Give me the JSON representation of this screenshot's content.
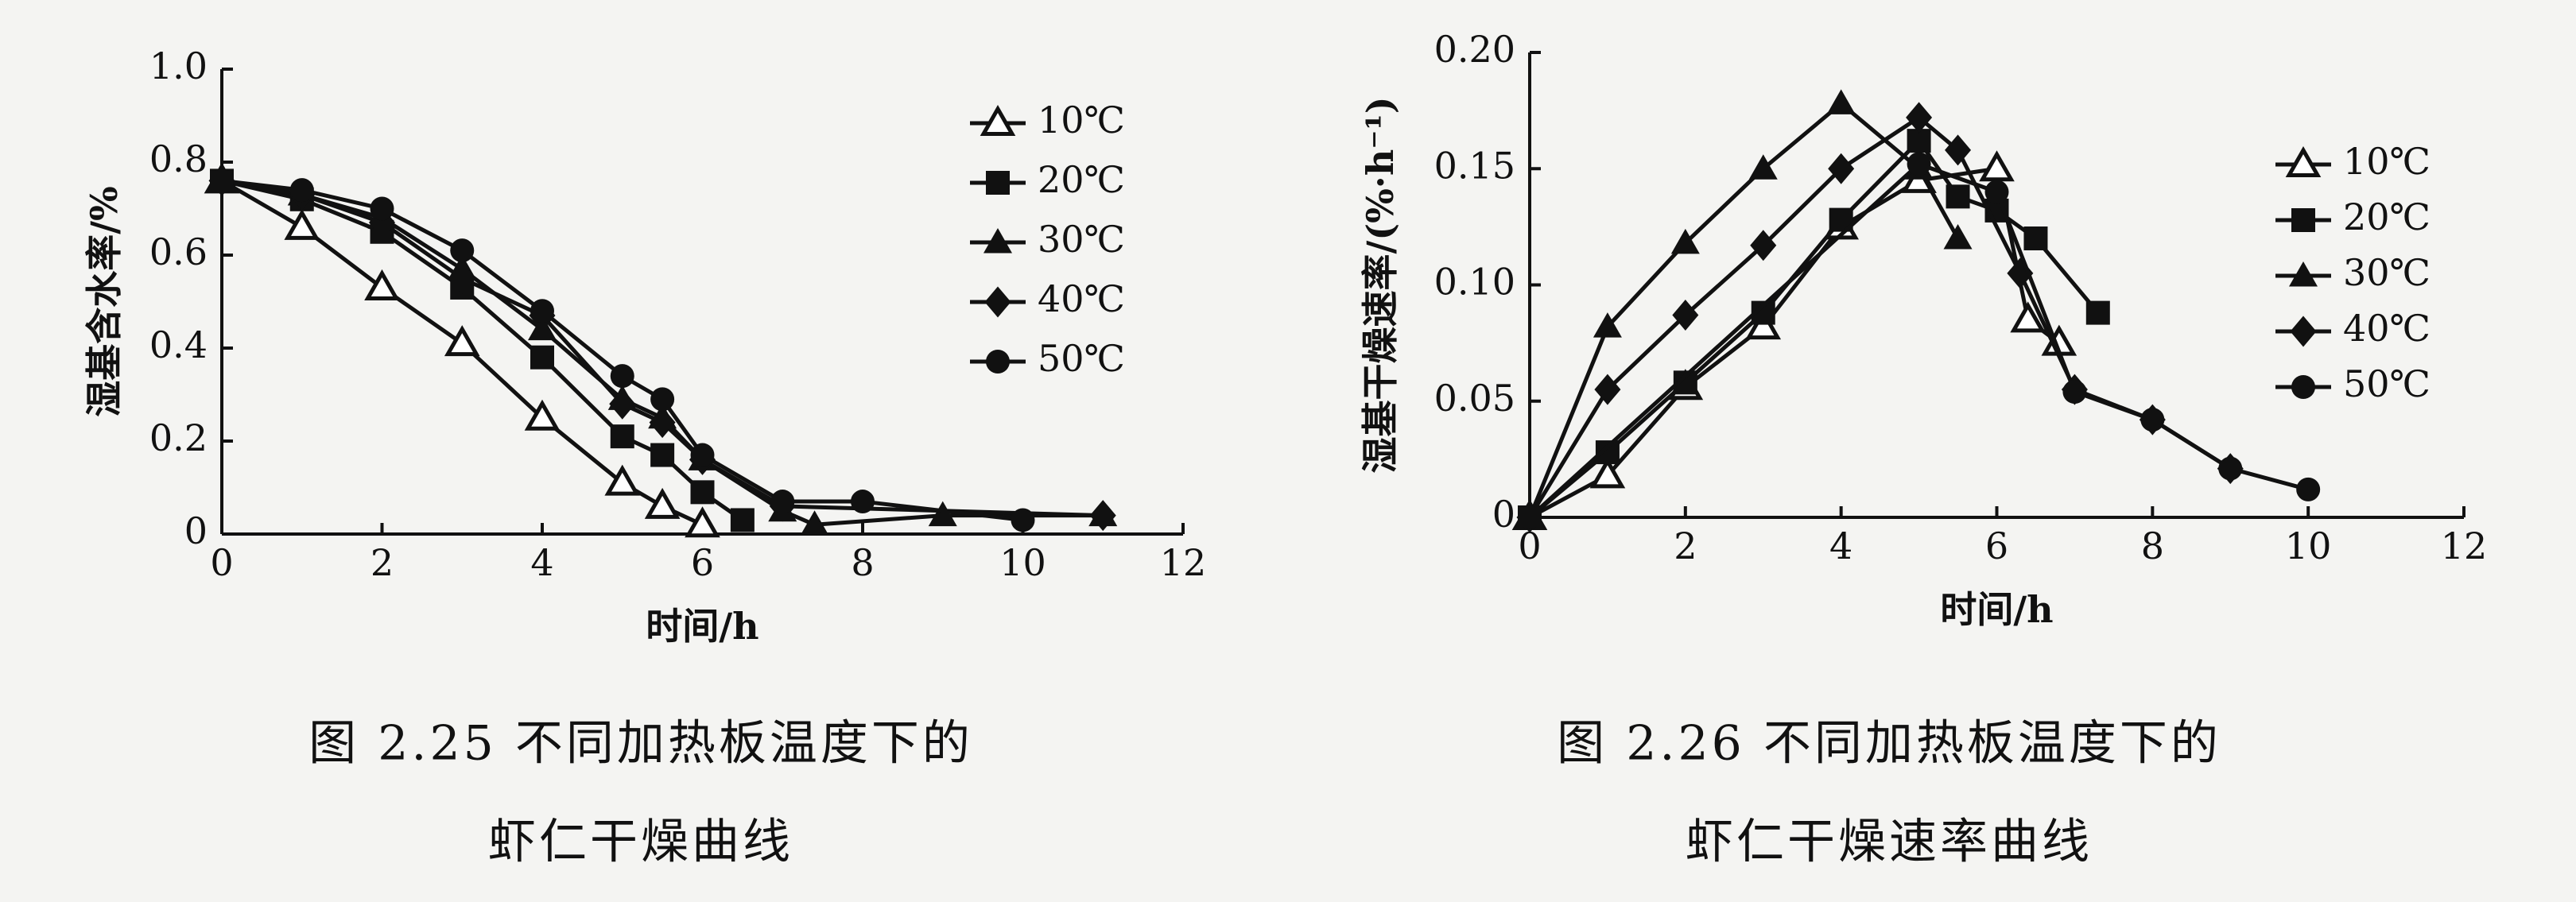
{
  "chart_data": [
    {
      "type": "line",
      "xlabel": "时间/h",
      "ylabel": "湿基含水率/%",
      "caption": [
        "图 2.25  不同加热板温度下的",
        "虾仁干燥曲线"
      ],
      "xlim": [
        0,
        12
      ],
      "xticks": [
        0,
        2,
        4,
        6,
        8,
        10,
        12
      ],
      "ylim": [
        0,
        1
      ],
      "yticks": [
        0,
        0.2,
        0.4,
        0.6,
        0.8,
        {
          "value": 1,
          "label": "1.0"
        }
      ],
      "series": [
        {
          "name": "10℃",
          "color": "#111",
          "marker": "open-triangle",
          "x": [
            0,
            1,
            2,
            3,
            4,
            5,
            5.5,
            6
          ],
          "values": [
            0.76,
            0.66,
            0.53,
            0.41,
            0.25,
            0.11,
            0.06,
            0.02
          ]
        },
        {
          "name": "20℃",
          "color": "#111",
          "marker": "square",
          "x": [
            0,
            1,
            2,
            3,
            4,
            5,
            5.5,
            6,
            6.5
          ],
          "values": [
            0.76,
            0.72,
            0.65,
            0.53,
            0.38,
            0.21,
            0.17,
            0.09,
            0.03
          ]
        },
        {
          "name": "30℃",
          "color": "#111",
          "marker": "triangle",
          "x": [
            0,
            1,
            2,
            3,
            4,
            5,
            5.5,
            6,
            7,
            7.4,
            9,
            11
          ],
          "values": [
            0.76,
            0.73,
            0.68,
            0.57,
            0.44,
            0.29,
            0.25,
            0.16,
            0.05,
            0.02,
            0.04,
            0.04
          ]
        },
        {
          "name": "40℃",
          "color": "#111",
          "marker": "diamond",
          "x": [
            0,
            1,
            2,
            3,
            4,
            5,
            5.5,
            6,
            7,
            11
          ],
          "values": [
            0.76,
            0.73,
            0.67,
            0.55,
            0.47,
            0.28,
            0.24,
            0.16,
            0.06,
            0.04
          ]
        },
        {
          "name": "50℃",
          "color": "#111",
          "marker": "circle",
          "x": [
            0,
            1,
            2,
            3,
            4,
            5,
            5.5,
            6,
            7,
            8,
            10
          ],
          "values": [
            0.76,
            0.74,
            0.7,
            0.61,
            0.48,
            0.34,
            0.29,
            0.17,
            0.07,
            0.07,
            0.03
          ]
        }
      ]
    },
    {
      "type": "line",
      "xlabel": "时间/h",
      "ylabel": "湿基干燥速率/(%·h⁻¹)",
      "caption": [
        "图 2.26  不同加热板温度下的",
        "虾仁干燥速率曲线"
      ],
      "xlim": [
        0,
        12
      ],
      "xticks": [
        0,
        2,
        4,
        6,
        8,
        10,
        12
      ],
      "ylim": [
        0,
        0.2
      ],
      "yticks": [
        0,
        0.05,
        {
          "value": 0.1,
          "label": "0.10"
        },
        0.15,
        {
          "value": 0.2,
          "label": "0.20"
        }
      ],
      "series": [
        {
          "name": "10℃",
          "color": "#111",
          "marker": "open-triangle",
          "x": [
            0,
            1,
            2,
            3,
            4,
            5,
            6,
            6.4,
            6.8
          ],
          "values": [
            0,
            0.018,
            0.056,
            0.082,
            0.125,
            0.145,
            0.15,
            0.085,
            0.075
          ]
        },
        {
          "name": "20℃",
          "color": "#111",
          "marker": "square",
          "x": [
            0,
            1,
            2,
            3,
            4,
            5,
            5.5,
            6,
            6.5,
            7.3
          ],
          "values": [
            0,
            0.028,
            0.058,
            0.088,
            0.128,
            0.162,
            0.138,
            0.132,
            0.12,
            0.088
          ]
        },
        {
          "name": "30℃",
          "color": "#111",
          "marker": "triangle",
          "x": [
            0,
            1,
            2,
            3,
            4,
            5,
            5.5
          ],
          "values": [
            0,
            0.082,
            0.118,
            0.15,
            0.178,
            0.15,
            0.12
          ]
        },
        {
          "name": "40℃",
          "color": "#111",
          "marker": "diamond",
          "x": [
            0,
            1,
            2,
            3,
            4,
            5,
            5.5,
            6.3,
            7,
            8,
            9
          ],
          "values": [
            0,
            0.055,
            0.087,
            0.117,
            0.15,
            0.172,
            0.158,
            0.105,
            0.055,
            0.042,
            0.021
          ]
        },
        {
          "name": "50℃",
          "color": "#111",
          "marker": "circle",
          "x": [
            0,
            5,
            6,
            7,
            8,
            9,
            10
          ],
          "values": [
            0,
            0.152,
            0.14,
            0.054,
            0.042,
            0.021,
            0.012
          ]
        }
      ]
    }
  ]
}
